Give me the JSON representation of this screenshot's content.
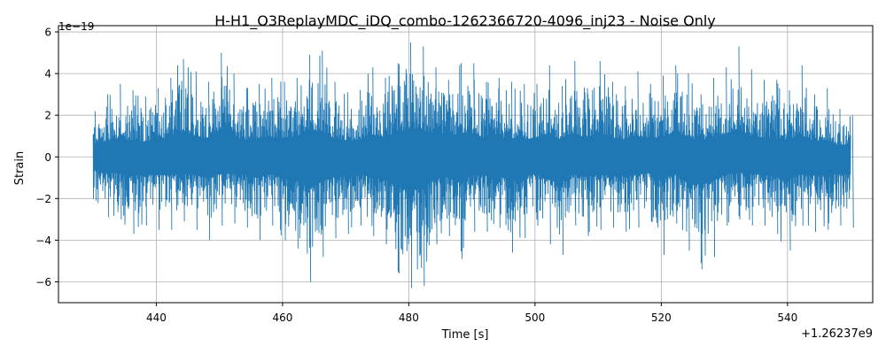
{
  "chart_data": {
    "type": "line",
    "title": "H-H1_O3ReplayMDC_iDQ_combo-1262366720-4096_inj23 - Noise Only",
    "xlabel": "Time [s]",
    "ylabel": "Strain",
    "x_offset_label": "+1.26237e9",
    "y_scale_label": "1e−19",
    "xlim": [
      424.5,
      553.5
    ],
    "ylim": [
      -7.0,
      6.3
    ],
    "x_ticks": [
      440,
      460,
      480,
      500,
      520,
      540
    ],
    "x_tick_labels": [
      "440",
      "460",
      "480",
      "500",
      "520",
      "540"
    ],
    "y_ticks": [
      -6,
      -4,
      -2,
      0,
      2,
      4,
      6
    ],
    "y_tick_labels": [
      "−6",
      "−4",
      "−2",
      "0",
      "2",
      "4",
      "6"
    ],
    "grid": true,
    "series": [
      {
        "color": "#1f77b4",
        "x_start": 430,
        "x_end": 550,
        "envelope": {
          "x": [
            430,
            432,
            434,
            436,
            438,
            440,
            442,
            444,
            446,
            448,
            450,
            452,
            454,
            456,
            458,
            460,
            462,
            464,
            466,
            468,
            470,
            472,
            474,
            476,
            478,
            480,
            482,
            484,
            486,
            488,
            490,
            492,
            494,
            496,
            498,
            500,
            502,
            504,
            506,
            508,
            510,
            512,
            514,
            516,
            518,
            520,
            522,
            524,
            526,
            528,
            530,
            532,
            534,
            536,
            538,
            540,
            542,
            544,
            546,
            548,
            550
          ],
          "upper": [
            2.2,
            3.0,
            3.5,
            3.2,
            2.9,
            3.3,
            3.8,
            4.7,
            4.1,
            3.6,
            5.0,
            4.0,
            3.3,
            3.5,
            3.8,
            3.6,
            3.8,
            4.9,
            5.1,
            3.6,
            3.1,
            3.2,
            4.3,
            3.8,
            4.5,
            5.5,
            5.3,
            4.3,
            3.7,
            4.5,
            4.5,
            3.6,
            3.8,
            3.6,
            3.5,
            3.5,
            4.4,
            3.4,
            4.6,
            3.3,
            4.6,
            3.6,
            3.4,
            4.1,
            3.5,
            3.9,
            4.4,
            4.0,
            3.0,
            3.8,
            4.3,
            5.3,
            4.2,
            3.7,
            3.7,
            3.2,
            4.4,
            3.0,
            3.3,
            2.3,
            2.0
          ],
          "lower": [
            -2.1,
            -2.9,
            -3.0,
            -3.7,
            -3.3,
            -3.5,
            -3.5,
            -3.1,
            -3.5,
            -4.0,
            -3.3,
            -3.2,
            -3.4,
            -4.0,
            -3.3,
            -4.0,
            -4.4,
            -6.0,
            -4.8,
            -3.9,
            -3.7,
            -3.3,
            -3.8,
            -4.2,
            -5.6,
            -6.3,
            -6.2,
            -4.2,
            -3.8,
            -4.9,
            -3.6,
            -3.6,
            -3.4,
            -4.6,
            -3.9,
            -3.3,
            -4.2,
            -4.7,
            -3.3,
            -3.8,
            -3.5,
            -3.4,
            -3.6,
            -3.4,
            -3.1,
            -4.7,
            -3.2,
            -4.5,
            -5.4,
            -4.8,
            -3.3,
            -3.0,
            -3.3,
            -3.3,
            -3.7,
            -4.5,
            -3.3,
            -3.6,
            -3.5,
            -3.3,
            -3.4
          ]
        }
      }
    ]
  }
}
